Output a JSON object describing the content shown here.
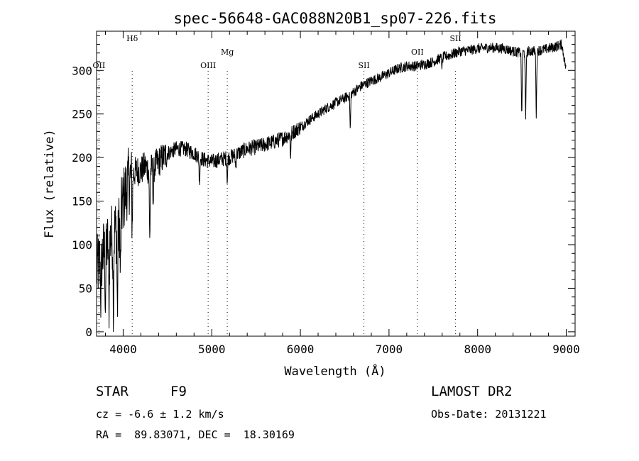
{
  "chart_data": {
    "type": "line",
    "title": "spec-56648-GAC088N20B1_sp07-226.fits",
    "xlabel": "Wavelength (Å)",
    "ylabel": "Flux (relative)",
    "xlim": [
      3700,
      9100
    ],
    "ylim": [
      -5,
      345
    ],
    "xticks": [
      4000,
      5000,
      6000,
      7000,
      8000,
      9000
    ],
    "yticks": [
      0,
      50,
      100,
      150,
      200,
      250,
      300
    ],
    "grid": false,
    "lines": [
      {
        "label": "OII",
        "x": 3727
      },
      {
        "label": "Hδ",
        "x": 4102
      },
      {
        "label": "OIII",
        "x": 4959
      },
      {
        "label": "Mg",
        "x": 5175
      },
      {
        "label": "SII",
        "x": 6717
      },
      {
        "label": "OII",
        "x": 7320
      },
      {
        "label": "SII",
        "x": 7751
      }
    ],
    "continuum": {
      "x": [
        3700,
        3750,
        3800,
        3850,
        3900,
        3950,
        4000,
        4050,
        4100,
        4150,
        4200,
        4250,
        4300,
        4400,
        4500,
        4600,
        4700,
        4800,
        4900,
        5000,
        5100,
        5200,
        5300,
        5400,
        5500,
        5600,
        5700,
        5800,
        5900,
        6000,
        6100,
        6200,
        6300,
        6400,
        6500,
        6600,
        6700,
        6800,
        6900,
        7000,
        7100,
        7200,
        7300,
        7400,
        7500,
        7600,
        7700,
        7800,
        7900,
        8000,
        8100,
        8200,
        8300,
        8400,
        8500,
        8600,
        8700,
        8800,
        8900,
        8950,
        9000
      ],
      "y": [
        70,
        85,
        95,
        105,
        115,
        120,
        150,
        170,
        180,
        185,
        185,
        190,
        185,
        195,
        205,
        210,
        210,
        205,
        198,
        195,
        198,
        200,
        205,
        210,
        212,
        215,
        218,
        222,
        228,
        235,
        243,
        250,
        257,
        263,
        268,
        275,
        283,
        288,
        292,
        297,
        302,
        305,
        305,
        307,
        310,
        315,
        318,
        322,
        323,
        325,
        326,
        326,
        325,
        322,
        320,
        322,
        323,
        325,
        328,
        330,
        300
      ]
    },
    "absorption_features": [
      {
        "x": 3750,
        "depth": 50
      },
      {
        "x": 3800,
        "depth": 60
      },
      {
        "x": 3840,
        "depth": 70
      },
      {
        "x": 3890,
        "depth": 85
      },
      {
        "x": 3935,
        "depth": 95
      },
      {
        "x": 3970,
        "depth": 70
      },
      {
        "x": 4102,
        "depth": 55
      },
      {
        "x": 4300,
        "depth": 80
      },
      {
        "x": 4340,
        "depth": 40
      },
      {
        "x": 4861,
        "depth": 30
      },
      {
        "x": 5175,
        "depth": 25
      },
      {
        "x": 5270,
        "depth": 15
      },
      {
        "x": 5890,
        "depth": 25
      },
      {
        "x": 6563,
        "depth": 40
      },
      {
        "x": 7600,
        "depth": 12
      },
      {
        "x": 8498,
        "depth": 75
      },
      {
        "x": 8542,
        "depth": 80
      },
      {
        "x": 8662,
        "depth": 75
      }
    ]
  },
  "info": {
    "object_class": "STAR",
    "subclass": "F9",
    "survey": "LAMOST DR2",
    "cz": "cz = -6.6 ± 1.2 km/s",
    "obs_date": "Obs-Date: 20131221",
    "coords": "RA =  89.83071, DEC =  18.30169"
  }
}
